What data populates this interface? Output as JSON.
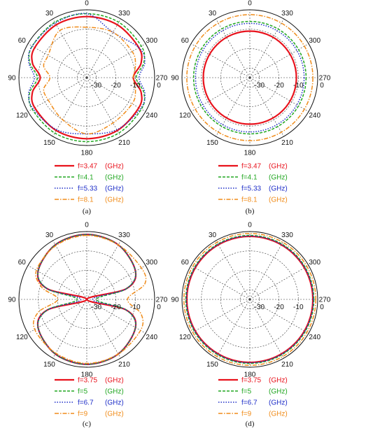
{
  "chart_data": [
    {
      "type": "line",
      "polar": true,
      "caption": "(a)",
      "angle_labels": [
        "0",
        "330",
        "300",
        "270",
        "240",
        "210",
        "180",
        "150",
        "120",
        "90",
        "60",
        "30"
      ],
      "radial_labels": [
        "-30",
        "-20",
        "-10",
        "0"
      ],
      "radial_range": [
        -35,
        0
      ],
      "grid": true,
      "unit": "(GHz)",
      "series": [
        {
          "name": "f=3.47",
          "color": "#e8121c",
          "style": "solid",
          "theta": [
            0,
            30,
            60,
            75,
            90,
            105,
            120,
            150,
            180,
            210,
            240,
            255,
            270,
            285,
            300,
            330
          ],
          "r": [
            -3.5,
            -3.5,
            -4,
            -6,
            -11,
            -6,
            -4,
            -3.5,
            -3.5,
            -3.5,
            -4,
            -6,
            -11,
            -6,
            -4,
            -3.5
          ]
        },
        {
          "name": "f=4.1",
          "color": "#22a722",
          "style": "dashed",
          "theta": [
            0,
            30,
            60,
            75,
            90,
            105,
            120,
            150,
            180,
            210,
            240,
            255,
            270,
            285,
            300,
            330
          ],
          "r": [
            -2,
            -2,
            -2.5,
            -4.5,
            -9.5,
            -4.5,
            -2.5,
            -2,
            -2,
            -2,
            -2.5,
            -4.5,
            -9.5,
            -4.5,
            -2.5,
            -2
          ]
        },
        {
          "name": "f=5.33",
          "color": "#1f2fc8",
          "style": "dotted",
          "theta": [
            0,
            30,
            60,
            75,
            90,
            105,
            120,
            150,
            180,
            210,
            240,
            255,
            270,
            285,
            300,
            330
          ],
          "r": [
            -2,
            -2.5,
            -2.5,
            -4,
            -8,
            -4,
            -3,
            -4,
            -6,
            -4,
            -3,
            -4,
            -8,
            -4,
            -4,
            -8
          ]
        },
        {
          "name": "f=8.1",
          "color": "#f08c1a",
          "style": "dashdot",
          "theta": [
            0,
            30,
            60,
            75,
            90,
            105,
            120,
            150,
            180,
            210,
            240,
            255,
            270,
            285,
            300,
            330
          ],
          "r": [
            -9,
            -7,
            -12,
            -12,
            -16,
            -12,
            -12,
            -10,
            -6,
            -8,
            -8,
            -9,
            -11,
            -9,
            -8,
            -8
          ]
        }
      ]
    },
    {
      "type": "line",
      "polar": true,
      "caption": "(b)",
      "angle_labels": [
        "0",
        "330",
        "300",
        "270",
        "240",
        "210",
        "180",
        "150",
        "120",
        "90",
        "60",
        "30"
      ],
      "radial_labels": [
        "-30",
        "-20",
        "-10",
        "0"
      ],
      "radial_range": [
        -35,
        0
      ],
      "grid": true,
      "unit": "(GHz)",
      "series": [
        {
          "name": "f=3.47",
          "color": "#e8121c",
          "style": "solid",
          "theta": [
            0,
            360
          ],
          "r": [
            -11,
            -11
          ]
        },
        {
          "name": "f=4.1",
          "color": "#22a722",
          "style": "dashed",
          "theta": [
            0,
            360
          ],
          "r": [
            -6,
            -6
          ]
        },
        {
          "name": "f=5.33",
          "color": "#1f2fc8",
          "style": "dotted",
          "theta": [
            0,
            360
          ],
          "r": [
            -7,
            -7
          ]
        },
        {
          "name": "f=8.1",
          "color": "#f08c1a",
          "style": "dashdot",
          "theta": [
            0,
            360
          ],
          "r": [
            -2.5,
            -2.5
          ]
        }
      ]
    },
    {
      "type": "line",
      "polar": true,
      "caption": "(c)",
      "angle_labels": [
        "0",
        "330",
        "300",
        "270",
        "240",
        "210",
        "180",
        "150",
        "120",
        "90",
        "60",
        "30"
      ],
      "radial_labels": [
        "-30",
        "-20",
        "-10",
        "0"
      ],
      "radial_range": [
        -35,
        0
      ],
      "grid": true,
      "unit": "(GHz)",
      "series": [
        {
          "name": "f=3.75",
          "color": "#e8121c",
          "style": "solid",
          "theta": [
            0,
            30,
            60,
            75,
            90,
            105,
            120,
            150,
            180,
            210,
            240,
            255,
            270,
            285,
            300,
            330
          ],
          "r": [
            -1.5,
            -2.5,
            -6,
            -14,
            -35,
            -14,
            -6,
            -2.5,
            -1.5,
            -2.5,
            -6,
            -14,
            -35,
            -14,
            -6,
            -2.5
          ]
        },
        {
          "name": "f=5",
          "color": "#22a722",
          "style": "dashed",
          "theta": [
            0,
            30,
            60,
            75,
            90,
            105,
            120,
            150,
            180,
            210,
            240,
            255,
            270,
            285,
            300,
            330
          ],
          "r": [
            -1.5,
            -2.5,
            -6,
            -14,
            -30,
            -14,
            -6,
            -2.5,
            -1.5,
            -2.5,
            -6,
            -14,
            -30,
            -14,
            -6,
            -2.5
          ]
        },
        {
          "name": "f=6.7",
          "color": "#1f2fc8",
          "style": "dotted",
          "theta": [
            0,
            30,
            60,
            75,
            90,
            105,
            120,
            150,
            180,
            210,
            240,
            255,
            270,
            285,
            300,
            330
          ],
          "r": [
            -1.5,
            -2.5,
            -6,
            -14,
            -32,
            -14,
            -6,
            -2.5,
            -1.5,
            -2.5,
            -6,
            -14,
            -32,
            -14,
            -6,
            -2.5
          ]
        },
        {
          "name": "f=9",
          "color": "#f08c1a",
          "style": "dashdot",
          "theta": [
            0,
            30,
            60,
            75,
            90,
            105,
            120,
            150,
            180,
            210,
            240,
            255,
            270,
            285,
            300,
            330
          ],
          "r": [
            -2,
            -3,
            -5,
            -11,
            -20,
            -9,
            -4,
            -3,
            -2,
            -2.5,
            -3,
            -6,
            -14,
            -4,
            -2.5,
            -2.5
          ]
        }
      ]
    },
    {
      "type": "line",
      "polar": true,
      "caption": "(d)",
      "angle_labels": [
        "0",
        "330",
        "300",
        "270",
        "240",
        "210",
        "180",
        "150",
        "120",
        "90",
        "60",
        "30"
      ],
      "radial_labels": [
        "-30",
        "-20",
        "-10",
        "0"
      ],
      "radial_range": [
        -35,
        0
      ],
      "grid": true,
      "unit": "(GHz)",
      "series": [
        {
          "name": "f=3.75",
          "color": "#e8121c",
          "style": "solid",
          "theta": [
            0,
            360
          ],
          "r": [
            -2.5,
            -2.5
          ]
        },
        {
          "name": "f=5",
          "color": "#22a722",
          "style": "dashed",
          "theta": [
            0,
            360
          ],
          "r": [
            -2,
            -2
          ]
        },
        {
          "name": "f=6.7",
          "color": "#1f2fc8",
          "style": "dotted",
          "theta": [
            0,
            360
          ],
          "r": [
            -2.3,
            -2.3
          ]
        },
        {
          "name": "f=9",
          "color": "#f08c1a",
          "style": "dashdot",
          "theta": [
            0,
            360
          ],
          "r": [
            -1,
            -1
          ]
        }
      ]
    }
  ]
}
